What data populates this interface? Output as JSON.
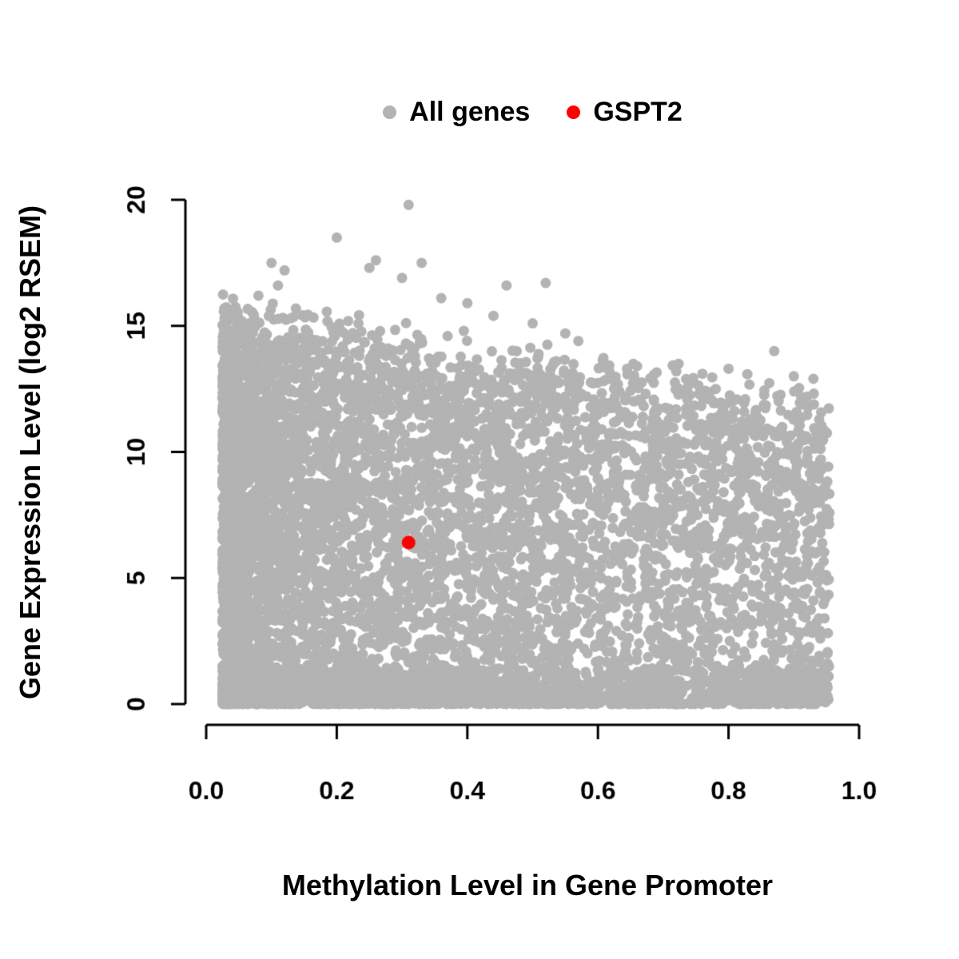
{
  "chart_data": {
    "type": "scatter",
    "title": "",
    "xlabel": "Methylation Level in Gene Promoter",
    "ylabel": "Gene Expression Level (log2 RSEM)",
    "xlim": [
      0.0,
      1.0
    ],
    "ylim": [
      0,
      20
    ],
    "grid": false,
    "legend_position": "top-center",
    "xtick_values": [
      0.0,
      0.2,
      0.4,
      0.6,
      0.8,
      1.0
    ],
    "xtick_labels": [
      "0.0",
      "0.2",
      "0.4",
      "0.6",
      "0.8",
      "1.0"
    ],
    "ytick_values": [
      0,
      5,
      10,
      15,
      20
    ],
    "ytick_labels": [
      "0",
      "5",
      "10",
      "15",
      "20"
    ],
    "legend": [
      {
        "label": "All genes",
        "color": "#b3b3b3"
      },
      {
        "label": "GSPT2",
        "color": "#fe0000"
      }
    ],
    "colors": {
      "points": "#b3b3b3",
      "highlight": "#fe0000",
      "axis": "#000000",
      "background": "#ffffff"
    },
    "highlight_point": {
      "label": "GSPT2",
      "x": 0.31,
      "y": 6.4
    },
    "cloud": {
      "description": "Dense cloud of ~19000 genes: methylation 0.02-0.95, expression 0-15.5; upper envelope of expression declines from ~15.5 at low methylation to ~12 at high methylation; density of points decreases as methylation increases beyond ~0.45; heavy mass of near-zero expression values across all methylation levels.",
      "n": 7500,
      "seed": 42,
      "x_min": 0.025,
      "x_max": 0.955,
      "x_skew": 1.65,
      "envelope_y_at_0": 15.4,
      "envelope_slope": -3.8,
      "envelope_jitter": 0.14,
      "bottom_fraction": 0.22,
      "bottom_max": 1.4,
      "y_pow": 0.92,
      "point_radius": 6.5
    },
    "outlier_points": [
      [
        0.31,
        19.8
      ],
      [
        0.2,
        18.5
      ],
      [
        0.26,
        17.6
      ],
      [
        0.1,
        17.5
      ],
      [
        0.12,
        17.2
      ],
      [
        0.25,
        17.3
      ],
      [
        0.33,
        17.5
      ],
      [
        0.3,
        16.9
      ],
      [
        0.08,
        16.2
      ],
      [
        0.11,
        16.6
      ],
      [
        0.46,
        16.6
      ],
      [
        0.52,
        16.7
      ],
      [
        0.36,
        16.1
      ],
      [
        0.4,
        15.9
      ],
      [
        0.44,
        15.4
      ],
      [
        0.57,
        14.4
      ],
      [
        0.87,
        14.0
      ],
      [
        0.66,
        13.4
      ],
      [
        0.72,
        13.2
      ],
      [
        0.76,
        13.1
      ],
      [
        0.8,
        13.3
      ],
      [
        0.93,
        12.9
      ],
      [
        0.9,
        13.0
      ],
      [
        0.55,
        14.7
      ],
      [
        0.5,
        15.1
      ]
    ]
  }
}
